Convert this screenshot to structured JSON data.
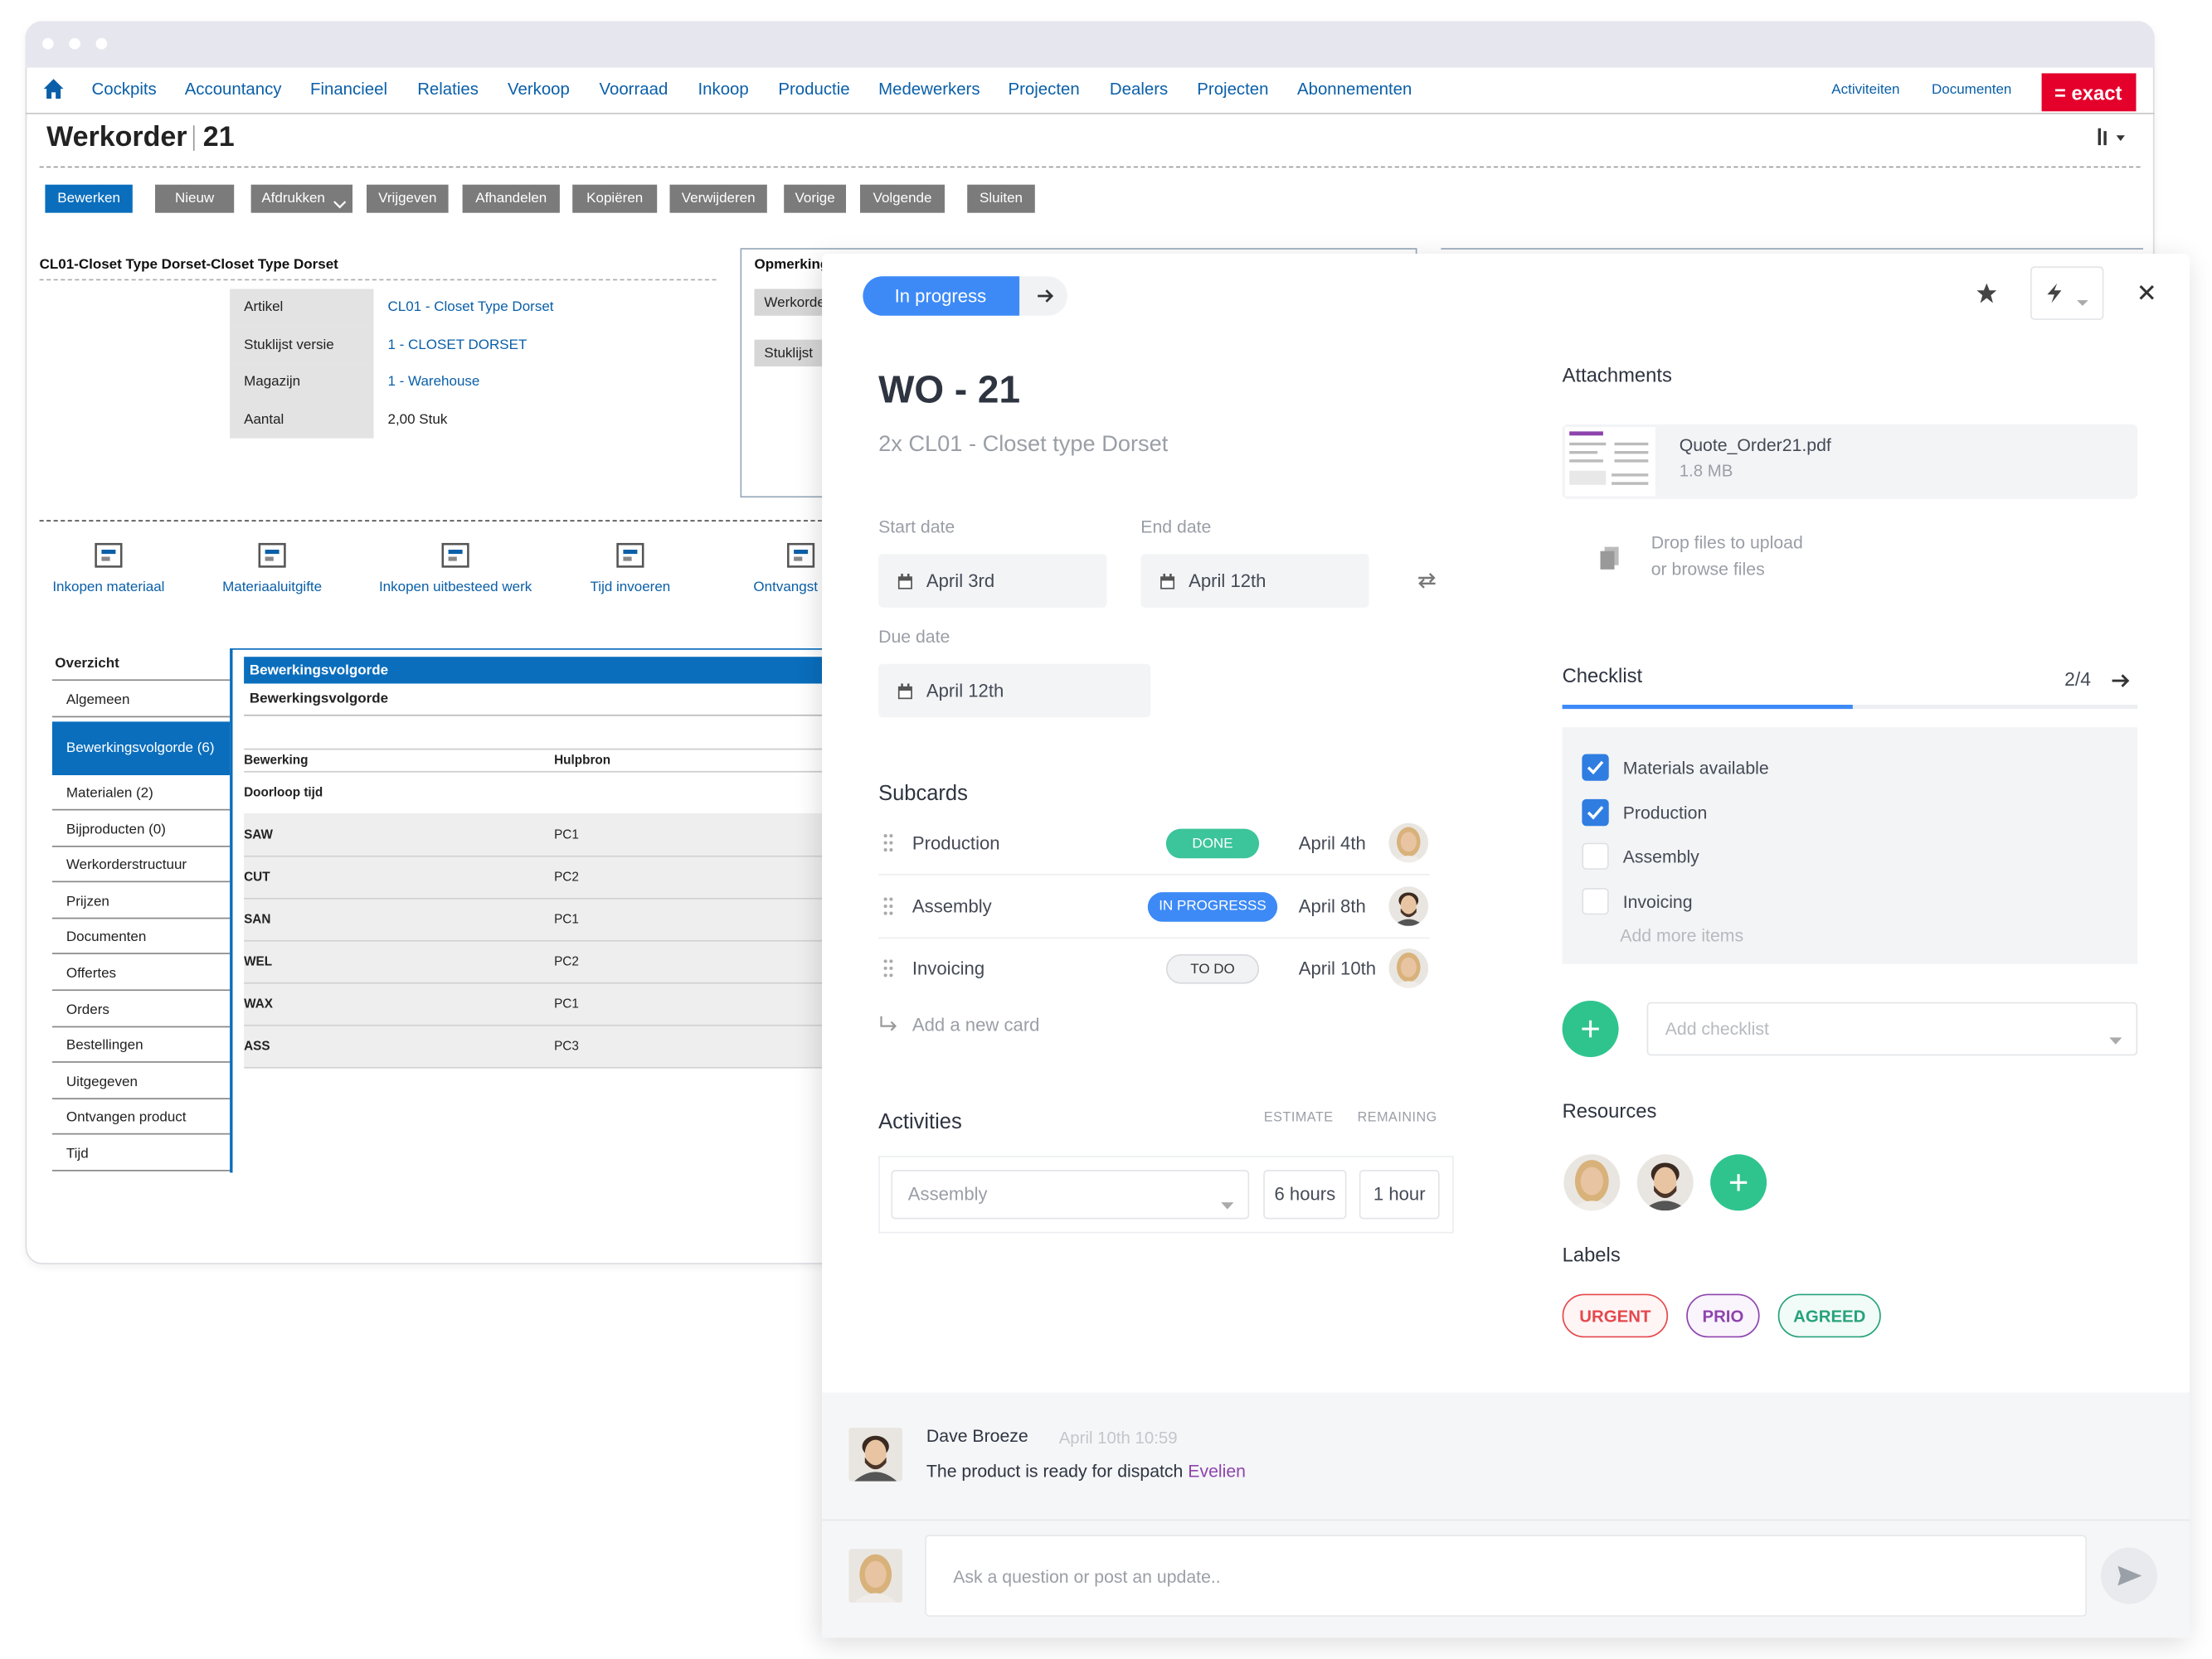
{
  "window": {
    "nav": [
      "Cockpits",
      "Accountancy",
      "Financieel",
      "Relaties",
      "Verkoop",
      "Voorraad",
      "Inkoop",
      "Productie",
      "Medewerkers",
      "Projecten",
      "Dealers",
      "Projecten",
      "Abonnementen"
    ],
    "nav_right": [
      "Activiteiten",
      "Documenten"
    ],
    "brand": "= exact",
    "title": "Werkorder",
    "number": "21",
    "buttons": [
      "Bewerken",
      "Nieuw",
      "Afdrukken",
      "Vrijgeven",
      "Afhandelen",
      "Kopiëren",
      "Verwijderen",
      "Vorige",
      "Volgende",
      "Sluiten"
    ],
    "section_title": "CL01-Closet Type Dorset-Closet Type Dorset",
    "fields": [
      [
        "Artikel",
        "CL01 - Closet Type Dorset"
      ],
      [
        "Stuklijst versie",
        "1 - CLOSET DORSET"
      ],
      [
        "Magazijn",
        "1 - Warehouse"
      ],
      [
        "Aantal",
        "2,00 Stuk"
      ]
    ],
    "remarks_title": "Opmerking",
    "remarks_rows": [
      "Werkorde",
      "Stuklijst"
    ],
    "actions": [
      "Inkopen materiaal",
      "Materiaaluitgifte",
      "Inkopen uitbesteed werk",
      "Tijd invoeren",
      "Ontvangst bijpr"
    ],
    "sidebar": [
      "Overzicht",
      "Algemeen",
      "Bewerkingsvolgorde (6)",
      "Materialen (2)",
      "Bijproducten (0)",
      "Werkorderstructuur",
      "Prijzen",
      "Documenten",
      "Offertes",
      "Orders",
      "Bestellingen",
      "Uitgegeven",
      "Ontvangen product",
      "Tijd"
    ],
    "panel_header": "Bewerkingsvolgorde",
    "panel_subheader": "Bewerkingsvolgorde",
    "table": {
      "columns": [
        "Bewerking",
        "Hulpbron"
      ],
      "group": "Doorloop tijd",
      "rows": [
        [
          "SAW",
          "PC1"
        ],
        [
          "CUT",
          "PC2"
        ],
        [
          "SAN",
          "PC1"
        ],
        [
          "WEL",
          "PC2"
        ],
        [
          "WAX",
          "PC1"
        ],
        [
          "ASS",
          "PC3"
        ]
      ]
    }
  },
  "card": {
    "status": "In progress",
    "title": "WO - 21",
    "subtitle": "2x CL01 - Closet type Dorset",
    "start_label": "Start date",
    "start": "April 3rd",
    "end_label": "End date",
    "end": "April 12th",
    "due_label": "Due date",
    "due": "April 12th",
    "subcards_title": "Subcards",
    "subcards": [
      {
        "name": "Production",
        "status": "DONE",
        "date": "April 4th"
      },
      {
        "name": "Assembly",
        "status": "IN PROGRESSS",
        "date": "April 8th"
      },
      {
        "name": "Invoicing",
        "status": "TO DO",
        "date": "April 10th"
      }
    ],
    "add_card": "Add a new card",
    "activities_title": "Activities",
    "estimate_label": "ESTIMATE",
    "remaining_label": "REMAINING",
    "activity": {
      "name": "Assembly",
      "estimate": "6 hours",
      "remaining": "1 hour"
    },
    "attachments_title": "Attachments",
    "attachment": {
      "name": "Quote_Order21.pdf",
      "size": "1.8 MB"
    },
    "drop": "Drop files to upload",
    "browse": "or browse files",
    "checklist_title": "Checklist",
    "checklist_progress": "2/4",
    "checklist": [
      {
        "text": "Materials available",
        "checked": true
      },
      {
        "text": "Production",
        "checked": true
      },
      {
        "text": "Assembly",
        "checked": false
      },
      {
        "text": "Invoicing",
        "checked": false
      }
    ],
    "add_items": "Add more items",
    "add_checklist": "Add checklist",
    "resources_title": "Resources",
    "labels_title": "Labels",
    "labels": [
      "URGENT",
      "PRIO",
      "AGREED"
    ],
    "comment": {
      "author": "Dave Broeze",
      "time": "April 10th 10:59",
      "text": "The product is ready for dispatch",
      "mention": "Evelien"
    },
    "input_placeholder": "Ask a question or post an update.."
  }
}
